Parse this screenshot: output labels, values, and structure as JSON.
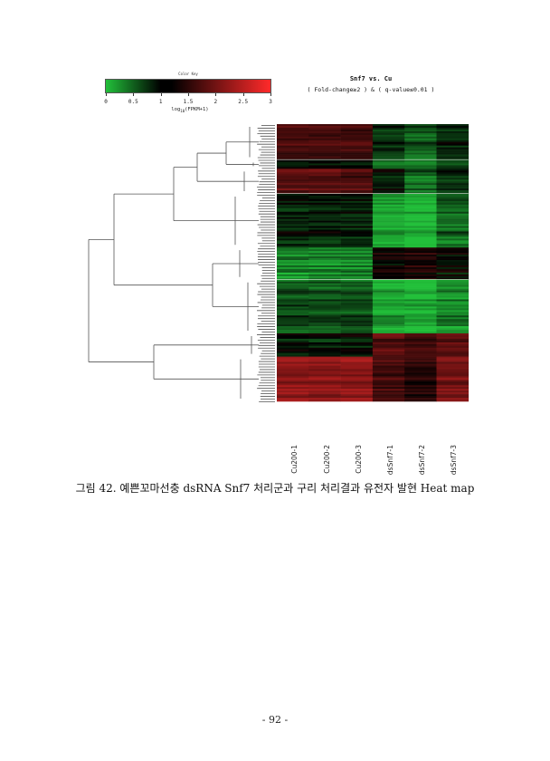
{
  "color_key": {
    "title": "Color Key",
    "ticks": [
      "0",
      "0.5",
      "1",
      "1.5",
      "2",
      "2.5",
      "3"
    ],
    "tick_values": [
      0,
      0.5,
      1,
      1.5,
      2,
      2.5,
      3
    ],
    "xlabel_prefix": "log",
    "xlabel_sub": "10",
    "xlabel_suffix": "(FPKM+1)",
    "colors": [
      "#22c03a",
      "#000000",
      "#ff2a2a"
    ]
  },
  "heatmap": {
    "title": "Snf7 vs. Cu",
    "subtitle": "( Fold-change≥2 ) & ( q-value≤0.01 )"
  },
  "chart_data": {
    "type": "heatmap",
    "title": "Snf7 vs. Cu",
    "columns": [
      "Cu200-1",
      "Cu200-2",
      "Cu200-3",
      "dsSnf7-1",
      "dsSnf7-2",
      "dsSnf7-3"
    ],
    "value_range": [
      0,
      3
    ],
    "row_dendrogram": true,
    "blocks": [
      {
        "rows": 40,
        "values": [
          1.6,
          1.6,
          1.6,
          0.8,
          0.6,
          0.9
        ]
      },
      {
        "rows": 10,
        "values": [
          1.0,
          1.0,
          1.0,
          0.5,
          0.4,
          0.7
        ]
      },
      {
        "rows": 28,
        "values": [
          1.7,
          1.7,
          1.6,
          0.9,
          0.5,
          0.8
        ]
      },
      {
        "rows": 60,
        "values": [
          0.9,
          0.9,
          0.9,
          0.2,
          0.1,
          0.5
        ]
      },
      {
        "rows": 36,
        "values": [
          0.3,
          0.3,
          0.3,
          1.1,
          1.2,
          1.0
        ]
      },
      {
        "rows": 60,
        "values": [
          0.6,
          0.6,
          0.6,
          0.2,
          0.1,
          0.3
        ]
      },
      {
        "rows": 26,
        "values": [
          0.9,
          0.9,
          0.9,
          1.7,
          1.5,
          1.7
        ]
      },
      {
        "rows": 50,
        "values": [
          2.1,
          2.1,
          2.1,
          1.5,
          1.3,
          1.9
        ]
      }
    ]
  },
  "caption": "그림 42. 예쁜꼬마선충 dsRNA Snf7 처리군과 구리 처리결과 유전자 발현 Heat map",
  "page_number": "- 92 -"
}
